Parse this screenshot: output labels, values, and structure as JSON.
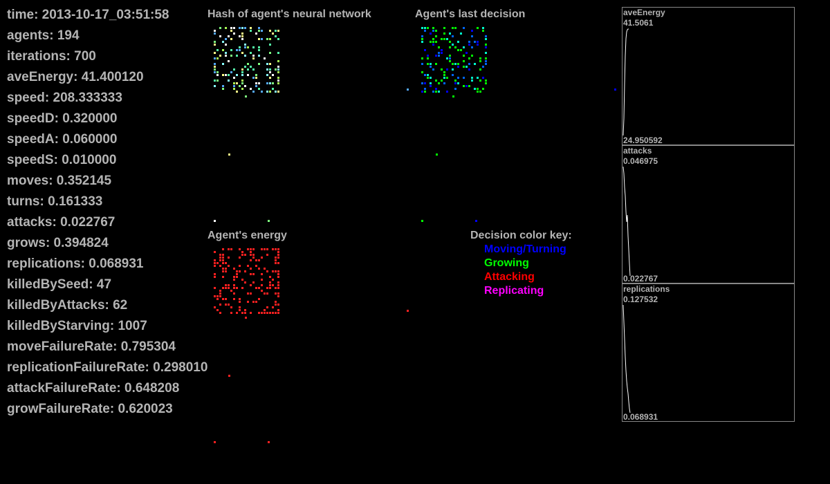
{
  "stats": [
    "time: 2013-10-17_03:51:58",
    "agents: 194",
    "iterations: 700",
    "aveEnergy: 41.400120",
    "speed: 208.333333",
    "speedD: 0.320000",
    "speedA: 0.060000",
    "speedS: 0.010000",
    "moves: 0.352145",
    "turns: 0.161333",
    "attacks: 0.022767",
    "grows: 0.394824",
    "replications: 0.068931",
    "killedBySeed: 47",
    "killedByAttacks: 62",
    "killedByStarving: 1007",
    "moveFailureRate: 0.795304",
    "replicationFailureRate: 0.298010",
    "attackFailureRate: 0.648208",
    "growFailureRate: 0.620023"
  ],
  "panels": {
    "hash_title": "Hash of agent's neural network",
    "decision_title": "Agent's last decision",
    "energy_title": "Agent's energy"
  },
  "decision_key": {
    "title": "Decision color key:",
    "items": [
      {
        "label": "Moving/Turning",
        "color": "#0000ff"
      },
      {
        "label": "Growing",
        "color": "#00ff00"
      },
      {
        "label": "Attacking",
        "color": "#ff0000"
      },
      {
        "label": "Replicating",
        "color": "#ff00ff"
      }
    ]
  },
  "graphs": [
    {
      "name": "aveEnergy",
      "max": "41.5061",
      "min": "24.950592"
    },
    {
      "name": "attacks",
      "max": "0.046975",
      "min": "0.022767"
    },
    {
      "name": "replications",
      "max": "0.127532",
      "min": "0.068931"
    }
  ],
  "colors": {
    "background": "#000000",
    "text": "#b4b4b4",
    "energy": "#ff2020",
    "hash_palette": [
      "#7fff7f",
      "#55ffaa",
      "#ffff88",
      "#88ffff",
      "#aaff55",
      "#55aaff",
      "#ffffff"
    ],
    "decision_palette": [
      "#00ff00",
      "#00ff00",
      "#0000ff",
      "#0066ff",
      "#00ffcc"
    ]
  }
}
